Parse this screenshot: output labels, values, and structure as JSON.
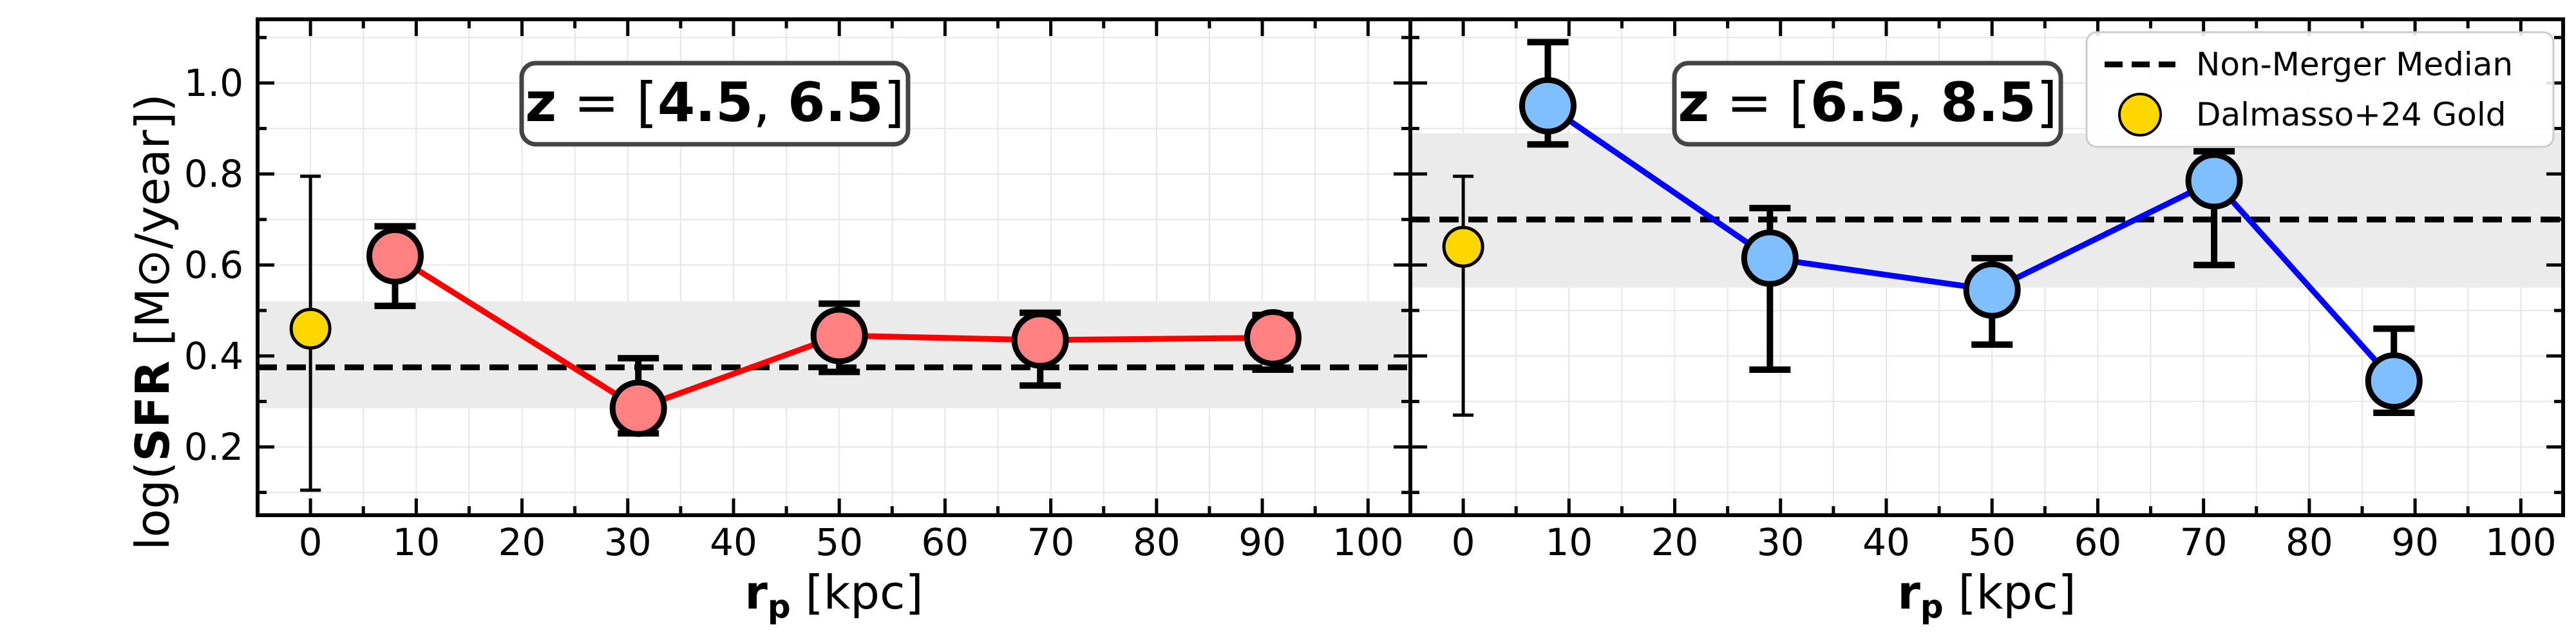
{
  "chart_data": {
    "type": "scatter",
    "ylabel": {
      "prefix": "log(",
      "bold": "SFR",
      "suffix": " [M⊙/year])"
    },
    "xlabel": {
      "bold": "r",
      "sub": "p",
      "suffix": " [kpc]"
    },
    "xlim": [
      -5,
      104
    ],
    "ylim": [
      0.05,
      1.14
    ],
    "xticks": [
      0,
      10,
      20,
      30,
      40,
      50,
      60,
      70,
      80,
      90,
      100
    ],
    "yticks": [
      0.2,
      0.4,
      0.6,
      0.8,
      1.0
    ],
    "ytick_labels": [
      "0.2",
      "0.4",
      "0.6",
      "0.8",
      "1.0"
    ],
    "grid": true,
    "legend": {
      "placement": "top-right",
      "entries": [
        {
          "label": "Non-Merger Median",
          "marker": "dashed-line",
          "color": "#000000"
        },
        {
          "label": "Dalmasso+24 Gold",
          "marker": "circle",
          "color": "#ffd700"
        }
      ]
    },
    "panels": [
      {
        "annotation": {
          "z": "z",
          "eq": " = [",
          "a": "4.5",
          "sep": ", ",
          "b": "6.5",
          "close": "]"
        },
        "line_color": "#ff0000",
        "marker_color": "#ff8080",
        "series": [
          {
            "x": 8,
            "y": 0.62,
            "yerr_low": 0.11,
            "yerr_high": 0.065
          },
          {
            "x": 31,
            "y": 0.285,
            "yerr_low": 0.055,
            "yerr_high": 0.11
          },
          {
            "x": 50,
            "y": 0.445,
            "yerr_low": 0.08,
            "yerr_high": 0.07
          },
          {
            "x": 69,
            "y": 0.435,
            "yerr_low": 0.1,
            "yerr_high": 0.06
          },
          {
            "x": 91,
            "y": 0.44,
            "yerr_low": 0.07,
            "yerr_high": 0.05
          }
        ],
        "median": {
          "y": 0.375,
          "band_low": 0.285,
          "band_high": 0.52
        },
        "reference": {
          "x": 0,
          "y": 0.46,
          "yerr_low": 0.355,
          "yerr_high": 0.335
        }
      },
      {
        "annotation": {
          "z": "z",
          "eq": " = [",
          "a": "6.5",
          "sep": ", ",
          "b": "8.5",
          "close": "]"
        },
        "line_color": "#0000ff",
        "marker_color": "#80bfff",
        "series": [
          {
            "x": 8,
            "y": 0.95,
            "yerr_low": 0.085,
            "yerr_high": 0.14
          },
          {
            "x": 29,
            "y": 0.615,
            "yerr_low": 0.245,
            "yerr_high": 0.11
          },
          {
            "x": 50,
            "y": 0.545,
            "yerr_low": 0.12,
            "yerr_high": 0.07
          },
          {
            "x": 71,
            "y": 0.785,
            "yerr_low": 0.185,
            "yerr_high": 0.065
          },
          {
            "x": 88,
            "y": 0.345,
            "yerr_low": 0.07,
            "yerr_high": 0.115
          }
        ],
        "median": {
          "y": 0.7,
          "band_low": 0.55,
          "band_high": 0.89
        },
        "reference": {
          "x": 0,
          "y": 0.64,
          "yerr_low": 0.37,
          "yerr_high": 0.155
        }
      }
    ]
  }
}
